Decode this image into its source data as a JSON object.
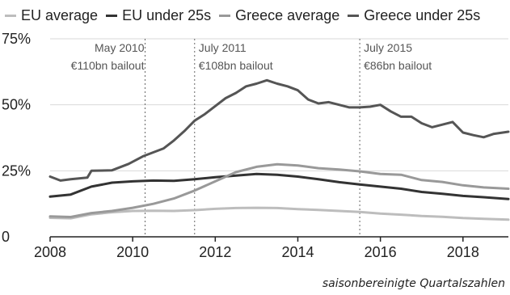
{
  "chart_data": {
    "type": "line",
    "xlim": [
      2008,
      2019.1
    ],
    "ylim": [
      0,
      75
    ],
    "x_ticks": [
      "2008",
      "2010",
      "2012",
      "2014",
      "2016",
      "2018"
    ],
    "x_tick_values": [
      2008,
      2010,
      2012,
      2014,
      2016,
      2018
    ],
    "y_ticks": [
      "0",
      "25%",
      "50%",
      "75%"
    ],
    "y_tick_values": [
      0,
      25,
      50,
      75
    ],
    "grid": "horizontal",
    "legend_position": "top",
    "series": [
      {
        "name": "EU average",
        "color": "#bdbdbd",
        "x": [
          2008,
          2008.5,
          2009,
          2009.5,
          2010,
          2010.5,
          2011,
          2011.5,
          2012,
          2012.5,
          2013,
          2013.5,
          2014,
          2014.5,
          2015,
          2015.5,
          2016,
          2016.5,
          2017,
          2017.5,
          2018,
          2018.5,
          2019.1
        ],
        "y": [
          7.2,
          7.0,
          8.5,
          9.3,
          9.8,
          9.9,
          9.8,
          10.1,
          10.6,
          10.9,
          11.0,
          10.9,
          10.5,
          10.2,
          9.8,
          9.4,
          8.8,
          8.4,
          7.9,
          7.6,
          7.1,
          6.8,
          6.5
        ]
      },
      {
        "name": "EU under 25s",
        "color": "#333333",
        "x": [
          2008,
          2008.5,
          2009,
          2009.5,
          2010,
          2010.5,
          2011,
          2011.5,
          2012,
          2012.5,
          2013,
          2013.5,
          2014,
          2014.5,
          2015,
          2015.5,
          2016,
          2016.5,
          2017,
          2017.5,
          2018,
          2018.5,
          2019.1
        ],
        "y": [
          15.2,
          16.0,
          19.0,
          20.5,
          21.0,
          21.3,
          21.2,
          21.8,
          22.6,
          23.2,
          23.8,
          23.5,
          22.8,
          21.8,
          20.7,
          19.8,
          19.0,
          18.2,
          17.0,
          16.3,
          15.5,
          15.0,
          14.3
        ]
      },
      {
        "name": "Greece average",
        "color": "#999999",
        "x": [
          2008,
          2008.5,
          2009,
          2009.5,
          2010,
          2010.5,
          2011,
          2011.5,
          2012,
          2012.5,
          2013,
          2013.5,
          2014,
          2014.5,
          2015,
          2015.5,
          2016,
          2016.5,
          2017,
          2017.5,
          2018,
          2018.5,
          2019.1
        ],
        "y": [
          7.7,
          7.5,
          9.0,
          9.8,
          11.0,
          12.5,
          14.5,
          17.5,
          21.0,
          24.5,
          26.5,
          27.5,
          27.0,
          26.0,
          25.5,
          24.8,
          23.8,
          23.5,
          21.5,
          20.8,
          19.5,
          18.7,
          18.2
        ]
      },
      {
        "name": "Greece under 25s",
        "color": "#555555",
        "x": [
          2008,
          2008.25,
          2008.5,
          2008.9,
          2009,
          2009.5,
          2009.9,
          2010.25,
          2010.5,
          2010.75,
          2011,
          2011.25,
          2011.5,
          2011.75,
          2012,
          2012.25,
          2012.5,
          2012.75,
          2013,
          2013.25,
          2013.5,
          2013.75,
          2014,
          2014.25,
          2014.5,
          2014.75,
          2015,
          2015.25,
          2015.5,
          2015.75,
          2016,
          2016.25,
          2016.5,
          2016.75,
          2017,
          2017.25,
          2017.5,
          2017.75,
          2018,
          2018.25,
          2018.5,
          2018.75,
          2019.1
        ],
        "y": [
          22.8,
          21.3,
          21.8,
          22.4,
          25.0,
          25.2,
          27.6,
          30.5,
          32.0,
          33.5,
          36.5,
          40.0,
          44.0,
          46.5,
          49.5,
          52.5,
          54.5,
          57.0,
          58.0,
          59.3,
          58.0,
          57.0,
          55.5,
          52.0,
          50.5,
          51.0,
          50.0,
          49.0,
          49.0,
          49.3,
          50.0,
          47.5,
          45.5,
          45.5,
          43.0,
          41.5,
          42.5,
          43.5,
          39.5,
          38.5,
          37.7,
          39.0,
          39.8
        ]
      }
    ],
    "annotations": [
      {
        "x": 2010.3,
        "lines": [
          "May 2010",
          "€110bn bailout"
        ]
      },
      {
        "x": 2011.5,
        "lines": [
          "July 2011",
          "€108bn bailout"
        ]
      },
      {
        "x": 2015.5,
        "lines": [
          "July 2015",
          "€86bn bailout"
        ]
      }
    ],
    "caption": "saisonbereinigte Quartalszahlen"
  }
}
